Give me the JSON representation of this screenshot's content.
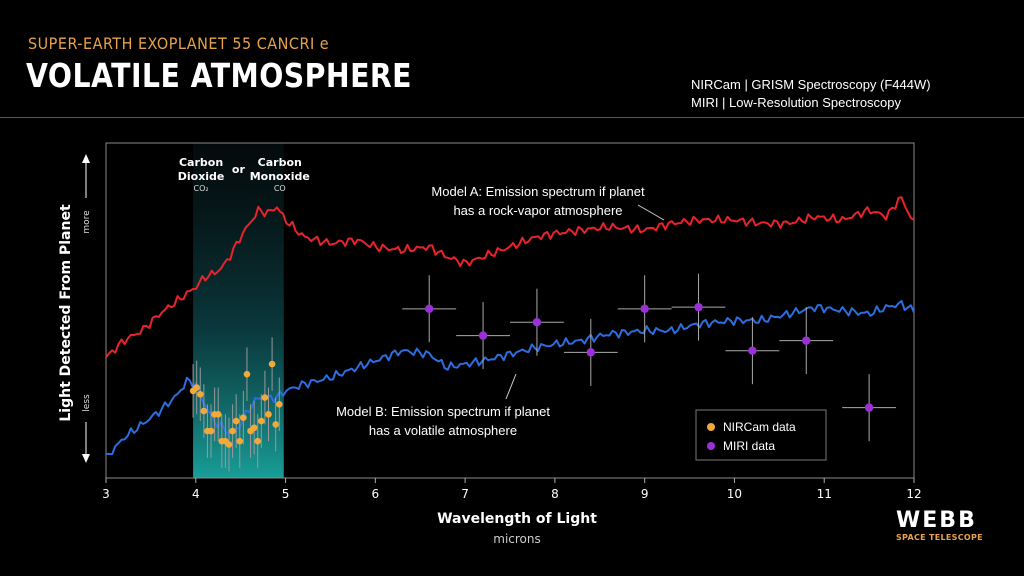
{
  "header": {
    "supertitle": "SUPER-EARTH EXOPLANET 55 CANCRI e",
    "title": "VOLATILE ATMOSPHERE",
    "instrument_line1": "NIRCam | GRISM Spectroscopy (F444W)",
    "instrument_line2": "MIRI | Low-Resolution Spectroscopy"
  },
  "logo": {
    "name": "WEBB",
    "subtitle": "SPACE TELESCOPE"
  },
  "colors": {
    "model_a": "#e8232b",
    "model_b": "#2c6de0",
    "nircam": "#f2a93b",
    "miri": "#9b30d9",
    "band": "#1aa6a0"
  },
  "chart_data": {
    "type": "line",
    "xlabel": "Wavelength of Light",
    "xunit": "microns",
    "ylabel": "Light Detected From Planet",
    "ylabel_more": "more",
    "ylabel_less": "less",
    "xlim": [
      3,
      12
    ],
    "ylim": [
      0,
      1
    ],
    "xticks": [
      3,
      4,
      5,
      6,
      7,
      8,
      9,
      10,
      11,
      12
    ],
    "band": {
      "x_range": [
        3.97,
        4.98
      ],
      "label_left": [
        "Carbon",
        "Dioxide"
      ],
      "formula_left": "CO₂",
      "label_mid": "or",
      "label_right": [
        "Carbon",
        "Monoxide"
      ],
      "formula_right": "CO"
    },
    "series": [
      {
        "name": "Model A: Emission spectrum if planet has a rock-vapor atmosphere",
        "label_lines": [
          "Model A: Emission spectrum if planet",
          "has a rock-vapor atmosphere"
        ],
        "x": [
          3.0,
          3.2,
          3.4,
          3.6,
          3.8,
          3.9,
          4.0,
          4.1,
          4.2,
          4.3,
          4.4,
          4.5,
          4.6,
          4.7,
          4.8,
          4.9,
          5.0,
          5.2,
          5.5,
          5.8,
          6.0,
          6.3,
          6.6,
          6.8,
          7.0,
          7.2,
          7.5,
          7.8,
          8.0,
          8.3,
          8.6,
          9.0,
          9.3,
          9.6,
          10.0,
          10.3,
          10.6,
          10.9,
          11.2,
          11.5,
          11.7,
          11.85,
          12.0
        ],
        "y": [
          0.36,
          0.41,
          0.44,
          0.49,
          0.53,
          0.55,
          0.57,
          0.6,
          0.61,
          0.63,
          0.67,
          0.72,
          0.76,
          0.8,
          0.79,
          0.81,
          0.77,
          0.72,
          0.7,
          0.71,
          0.69,
          0.68,
          0.69,
          0.66,
          0.64,
          0.66,
          0.69,
          0.72,
          0.73,
          0.74,
          0.75,
          0.74,
          0.76,
          0.77,
          0.77,
          0.76,
          0.76,
          0.78,
          0.77,
          0.8,
          0.78,
          0.84,
          0.76
        ]
      },
      {
        "name": "Model B: Emission spectrum if planet has a volatile atmosphere",
        "label_lines": [
          "Model B: Emission spectrum if planet",
          "has a volatile atmosphere"
        ],
        "x": [
          3.0,
          3.2,
          3.4,
          3.6,
          3.8,
          3.9,
          4.0,
          4.1,
          4.2,
          4.3,
          4.4,
          4.5,
          4.6,
          4.7,
          4.8,
          4.9,
          5.0,
          5.2,
          5.5,
          5.8,
          6.0,
          6.3,
          6.6,
          6.8,
          7.0,
          7.2,
          7.5,
          7.8,
          8.0,
          8.3,
          8.6,
          9.0,
          9.3,
          9.6,
          10.0,
          10.3,
          10.6,
          10.9,
          11.2,
          11.5,
          11.7,
          11.85,
          12.0
        ],
        "y": [
          0.06,
          0.12,
          0.16,
          0.2,
          0.25,
          0.29,
          0.28,
          0.22,
          0.17,
          0.15,
          0.13,
          0.16,
          0.21,
          0.24,
          0.24,
          0.24,
          0.26,
          0.28,
          0.3,
          0.33,
          0.35,
          0.38,
          0.37,
          0.33,
          0.34,
          0.35,
          0.37,
          0.39,
          0.4,
          0.41,
          0.43,
          0.44,
          0.44,
          0.46,
          0.47,
          0.47,
          0.49,
          0.51,
          0.5,
          0.49,
          0.51,
          0.52,
          0.5
        ]
      }
    ],
    "datasets": [
      {
        "name": "NIRCam data",
        "x": [
          3.97,
          4.01,
          4.05,
          4.09,
          4.13,
          4.17,
          4.21,
          4.25,
          4.29,
          4.33,
          4.37,
          4.41,
          4.45,
          4.49,
          4.53,
          4.57,
          4.61,
          4.65,
          4.69,
          4.73,
          4.77,
          4.81,
          4.85,
          4.89,
          4.93
        ],
        "y": [
          0.26,
          0.27,
          0.25,
          0.2,
          0.14,
          0.14,
          0.19,
          0.19,
          0.11,
          0.11,
          0.1,
          0.14,
          0.17,
          0.11,
          0.18,
          0.31,
          0.14,
          0.15,
          0.11,
          0.17,
          0.24,
          0.19,
          0.34,
          0.16,
          0.22
        ],
        "yerr": 0.08
      },
      {
        "name": "MIRI data",
        "x": [
          6.6,
          7.2,
          7.8,
          8.4,
          9.0,
          9.6,
          10.2,
          10.8,
          11.5
        ],
        "y": [
          0.505,
          0.425,
          0.465,
          0.375,
          0.505,
          0.51,
          0.38,
          0.41,
          0.21
        ],
        "xerr": 0.3,
        "yerr": 0.1
      }
    ],
    "legend": "bottom-right",
    "grid": false
  }
}
